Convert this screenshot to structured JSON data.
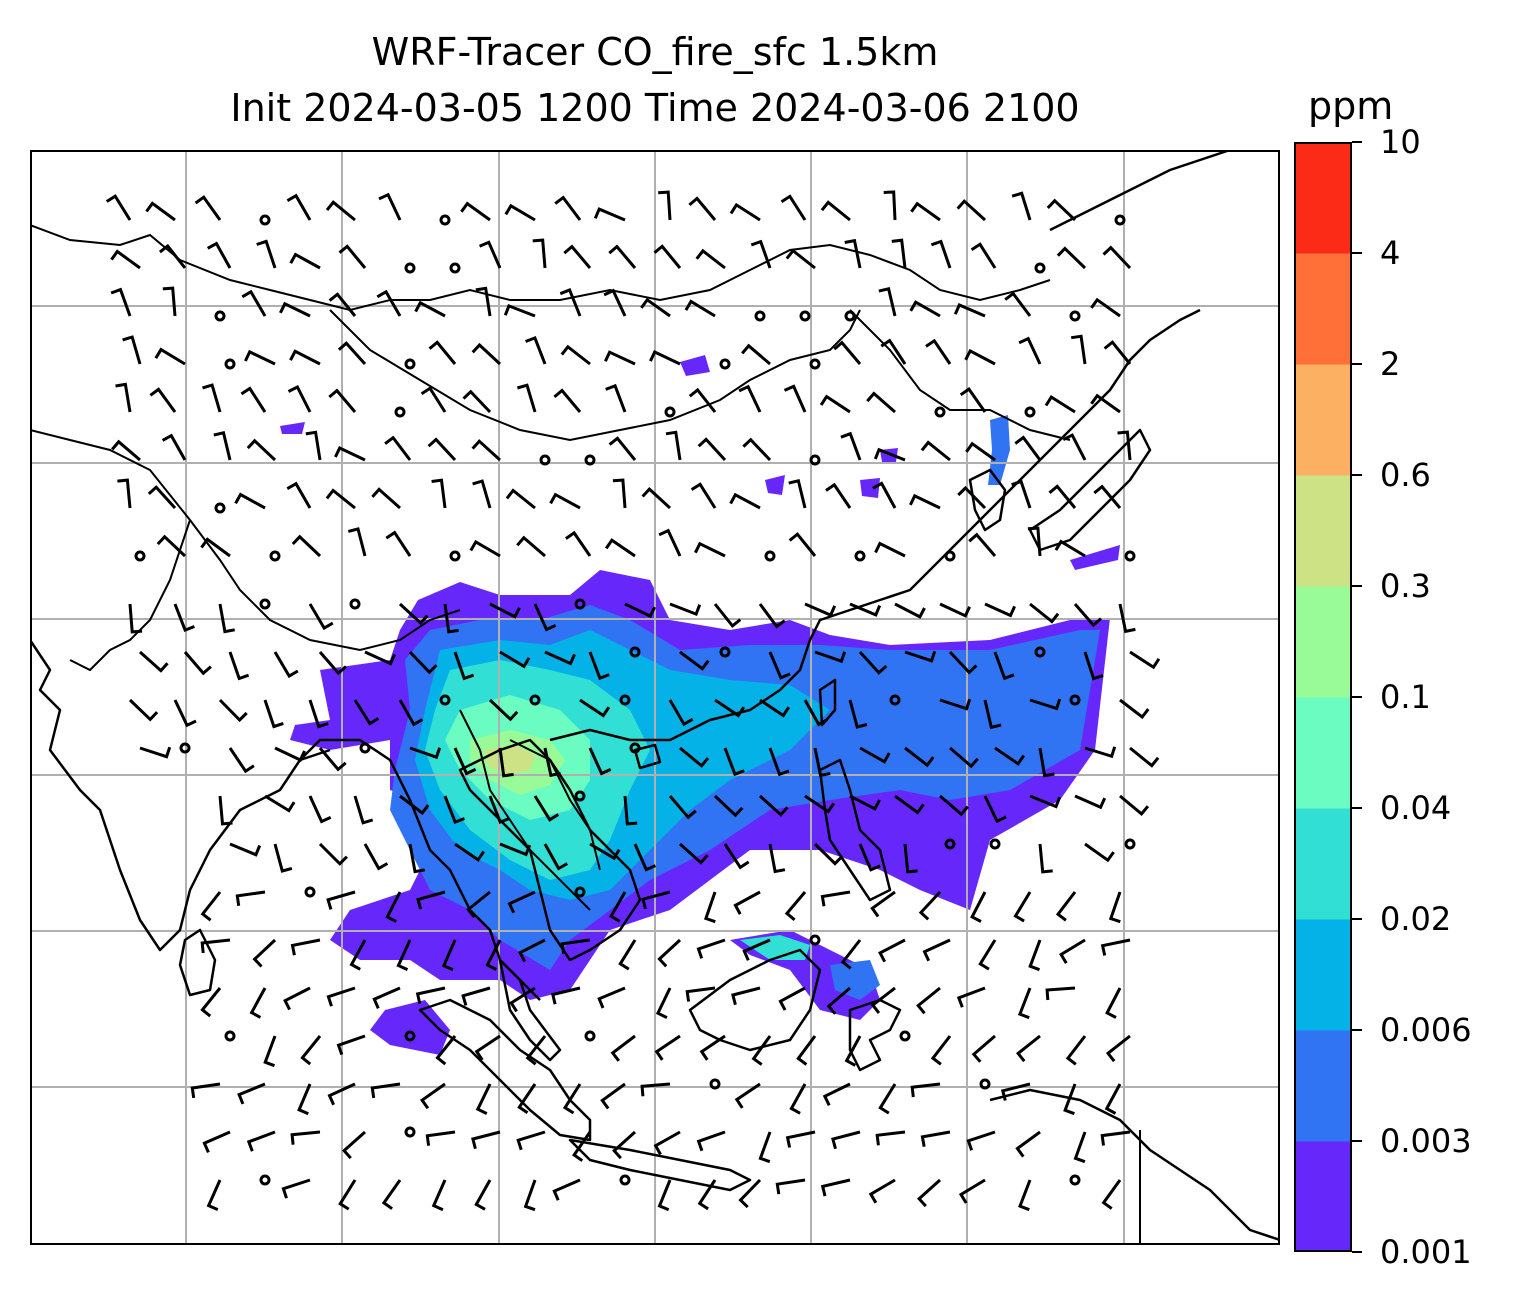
{
  "title": {
    "line1": "WRF-Tracer CO_fire_sfc 1.5km",
    "line2": "Init 2024-03-05 1200 Time 2024-03-06 2100"
  },
  "colorbar": {
    "unit": "ppm",
    "levels": [
      "0.001",
      "0.003",
      "0.006",
      "0.02",
      "0.04",
      "0.1",
      "0.3",
      "0.6",
      "2",
      "4",
      "10"
    ],
    "colors": [
      "#6628fa",
      "#3074f4",
      "#04b2e8",
      "#31dfd4",
      "#6bfcc2",
      "#98fb98",
      "#cde185",
      "#fcb062",
      "#fe7038",
      "#fb2b17"
    ]
  },
  "map": {
    "variable": "CO_fire_sfc",
    "overlays": [
      "coastlines",
      "country-borders",
      "lat-lon-gridlines",
      "wind-barbs"
    ],
    "gridline_color": "#b0b0b0"
  }
}
